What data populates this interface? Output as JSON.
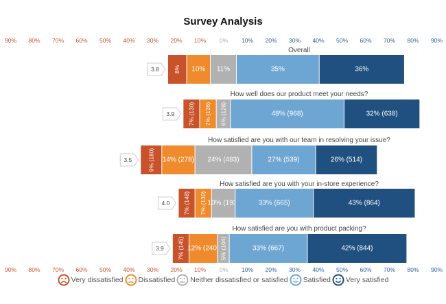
{
  "chart_data": {
    "type": "bar",
    "subtype": "diverging-stacked-horizontal",
    "title": "Survey Analysis",
    "axis_ticks": [
      "90%",
      "80%",
      "70%",
      "60%",
      "50%",
      "40%",
      "30%",
      "20%",
      "10%",
      "0%",
      "10%",
      "20%",
      "30%",
      "40%",
      "50%",
      "60%",
      "70%",
      "80%",
      "90%"
    ],
    "axis_tick_values": [
      -90,
      -80,
      -70,
      -60,
      -50,
      -40,
      -30,
      -20,
      -10,
      0,
      10,
      20,
      30,
      40,
      50,
      60,
      70,
      80,
      90
    ],
    "xlim": [
      -90,
      90
    ],
    "grid": false,
    "legend_position": "bottom",
    "series": [
      {
        "name": "Very dissatisfied",
        "color": "#c8532b",
        "icon": "very-dissatisfied-face-icon"
      },
      {
        "name": "Dissatisfied",
        "color": "#ef8b2c",
        "icon": "dissatisfied-face-icon"
      },
      {
        "name": "Neither dissatisfied or satisfied",
        "color": "#b1b1b1",
        "icon": "neutral-face-icon"
      },
      {
        "name": "Satisfied",
        "color": "#6ea6d3",
        "icon": "satisfied-face-icon"
      },
      {
        "name": "Very satisfied",
        "color": "#20507f",
        "icon": "very-satisfied-face-icon"
      }
    ],
    "rows": [
      {
        "question": "Overall",
        "score": "3.8",
        "values": [
          8,
          10,
          11,
          35,
          36
        ],
        "labels": [
          "8%",
          "10%",
          "11%",
          "35%",
          "36%"
        ]
      },
      {
        "question": "How well does our product meet your needs?",
        "score": "3.9",
        "values": [
          7,
          7,
          6,
          48,
          32
        ],
        "labels": [
          "7% (130)",
          "7% (136)",
          "6% (128)",
          "48% (968)",
          "32% (638)"
        ]
      },
      {
        "question": "How satisfied are you with our team in resolving your issue?",
        "score": "3.5",
        "values": [
          9,
          14,
          24,
          27,
          26
        ],
        "labels": [
          "9% (180)",
          "14% (278)",
          "24% (483)",
          "27% (539)",
          "26% (514)"
        ]
      },
      {
        "question": "How satisfied are you with your in-store experience?",
        "score": "4.0",
        "values": [
          7,
          7,
          10,
          33,
          43
        ],
        "labels": [
          "7% (148)",
          "7% (130)",
          "10% (193)",
          "33% (665)",
          "43% (864)"
        ]
      },
      {
        "question": "How satisfied are you with product packing?",
        "score": "3.9",
        "values": [
          7,
          12,
          5,
          33,
          42
        ],
        "labels": [
          "7% (145)",
          "12% (240)",
          "5% (104)",
          "33% (667)",
          "42% (844)"
        ]
      }
    ],
    "tick_colors": {
      "negative": "#c8532b",
      "zero": "#aaaaaa",
      "positive": "#2f5f93"
    }
  }
}
